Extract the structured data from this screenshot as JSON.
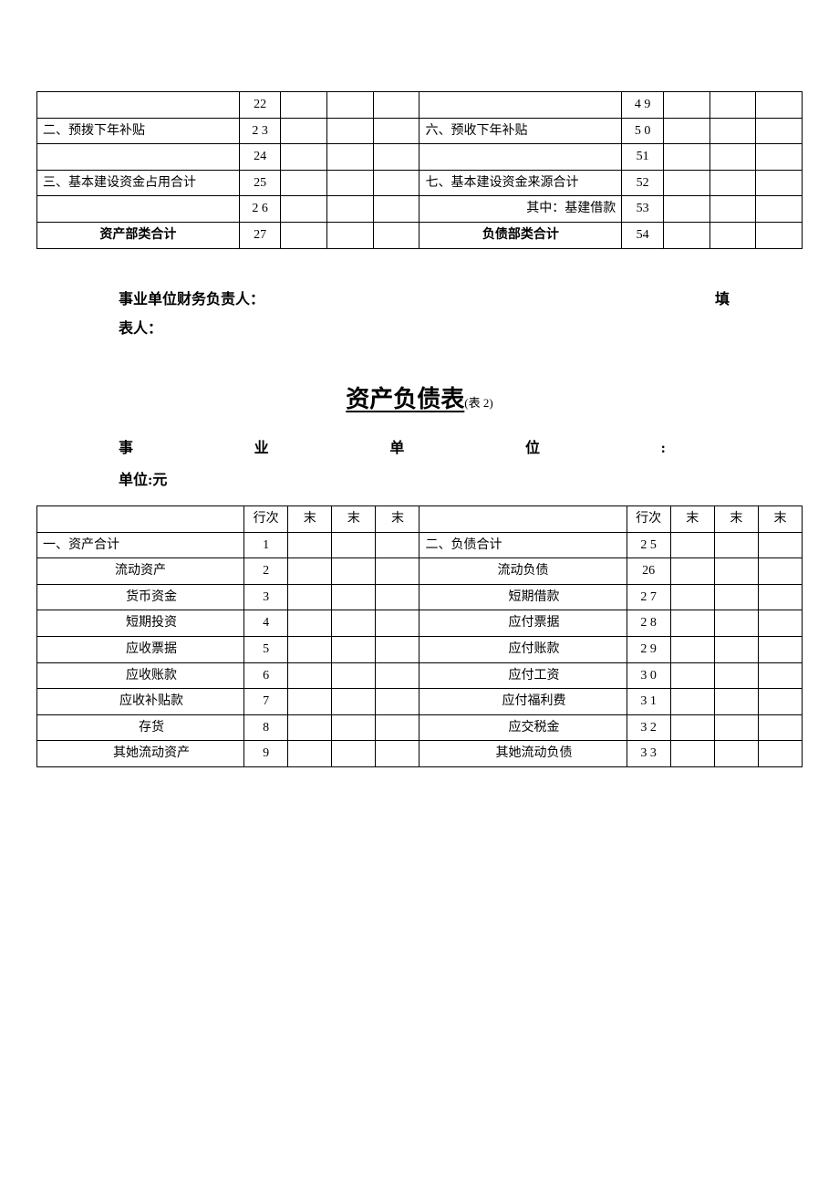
{
  "table1": {
    "rows": [
      {
        "l_label": "",
        "l_num": "22",
        "r_label": "",
        "r_num": "4 9"
      },
      {
        "l_label": "二、预拨下年补贴",
        "l_num": "2 3",
        "r_label": "六、预收下年补贴",
        "r_num": "5 0"
      },
      {
        "l_label": "",
        "l_num": "24",
        "r_label": "",
        "r_num": "51"
      },
      {
        "l_label": "三、基本建设资金占用合计",
        "l_num": "25",
        "r_label": "七、基本建设资金来源合计",
        "r_num": "52"
      },
      {
        "l_label": "",
        "l_num": "2 6",
        "r_label": "其中：基建借款",
        "r_num": "53",
        "r_align": "right"
      },
      {
        "l_label": "资产部类合计",
        "l_num": "27",
        "r_label": "负债部类合计",
        "r_num": "54",
        "l_center": true,
        "r_center": true,
        "bold": true
      }
    ]
  },
  "signatures": {
    "left": "事业单位财务负责人：",
    "right": "填",
    "line2": "表人："
  },
  "title2": {
    "main": "资产负债表",
    "sub": "(表 2)"
  },
  "header2": {
    "spread_chars": [
      "事",
      "业",
      "单",
      "位",
      ":"
    ],
    "line2": "单位:元"
  },
  "table2": {
    "headers": {
      "l_label": "",
      "l_num": "行次",
      "v": "末",
      "r_label": "",
      "r_num": "行次"
    },
    "rows": [
      {
        "l": "一、资产合计",
        "ln": "1",
        "r": "二、负债合计",
        "rn": "2 5",
        "l_style": "left",
        "r_style": "left"
      },
      {
        "l": "流动资产",
        "ln": "2",
        "r": "流动负债",
        "rn": "26",
        "l_style": "indent1",
        "r_style": "indent1c"
      },
      {
        "l": "货币资金",
        "ln": "3",
        "r": "短期借款",
        "rn": "2 7",
        "l_style": "indent2",
        "r_style": "indent2c"
      },
      {
        "l": "短期投资",
        "ln": "4",
        "r": "应付票据",
        "rn": "2 8",
        "l_style": "indent2",
        "r_style": "indent2c"
      },
      {
        "l": "应收票据",
        "ln": "5",
        "r": "应付账款",
        "rn": "2 9",
        "l_style": "indent2",
        "r_style": "indent2c"
      },
      {
        "l": "应收账款",
        "ln": "6",
        "r": "应付工资",
        "rn": "3 0",
        "l_style": "indent2",
        "r_style": "indent2c"
      },
      {
        "l": "应收补贴款",
        "ln": "7",
        "r": "应付福利费",
        "rn": "3 1",
        "l_style": "indent2",
        "r_style": "indent2c"
      },
      {
        "l": "存货",
        "ln": "8",
        "r": "应交税金",
        "rn": "3 2",
        "l_style": "indent2",
        "r_style": "indent2c"
      },
      {
        "l": "其她流动资产",
        "ln": "9",
        "r": "其她流动负债",
        "rn": "3 3",
        "l_style": "indent2",
        "r_style": "indent2c"
      }
    ]
  }
}
